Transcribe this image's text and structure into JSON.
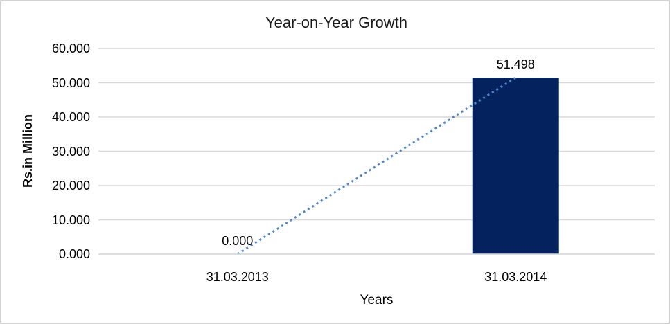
{
  "chart": {
    "title": "Year-on-Year Growth"
  },
  "chart_data": {
    "type": "bar",
    "title": "Year-on-Year Growth",
    "categories": [
      "31.03.2013",
      "31.03.2014"
    ],
    "series": [
      {
        "name": "Growth",
        "type": "bar",
        "values": [
          0,
          51.498
        ],
        "labels": [
          "0.000",
          "51.498"
        ],
        "color": "#04235e"
      },
      {
        "name": "Trendline",
        "type": "line",
        "style": "dotted",
        "values": [
          0,
          51.498
        ],
        "color": "#5089cd"
      }
    ],
    "xlabel": "Years",
    "ylabel": "Rs.in Million",
    "ylim": [
      0,
      60
    ],
    "ytick_labels": [
      "60.000",
      "50.000",
      "40.000",
      "30.000",
      "20.000",
      "10.000",
      "0.000"
    ],
    "grid": true,
    "legend": false,
    "gridline_color": "#d9d9d9",
    "axis_line_color": "#d9d9d9",
    "text_color": "#000000"
  }
}
